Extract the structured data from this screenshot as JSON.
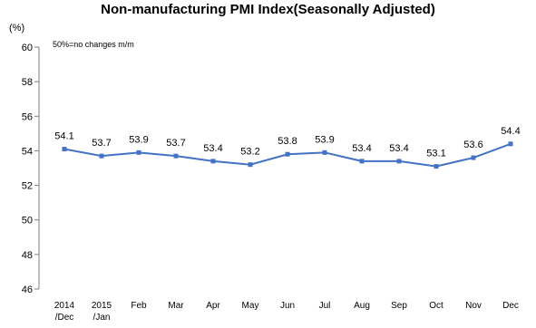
{
  "chart_data": {
    "type": "line",
    "title": "Non-manufacturing PMI Index(Seasonally Adjusted)",
    "unit_label": "(%)",
    "note": "50%=no changes m/m",
    "categories": [
      [
        "2014",
        "/Dec"
      ],
      [
        "2015",
        "/Jan"
      ],
      [
        "Feb"
      ],
      [
        "Mar"
      ],
      [
        "Apr"
      ],
      [
        "May"
      ],
      [
        "Jun"
      ],
      [
        "Jul"
      ],
      [
        "Aug"
      ],
      [
        "Sep"
      ],
      [
        "Oct"
      ],
      [
        "Nov"
      ],
      [
        "Dec"
      ]
    ],
    "series": [
      {
        "values": [
          54.1,
          53.7,
          53.9,
          53.7,
          53.4,
          53.2,
          53.8,
          53.9,
          53.4,
          53.4,
          53.1,
          53.6,
          54.4
        ],
        "labels": [
          "54.1",
          "53.7",
          "53.9",
          "53.7",
          "53.4",
          "53.2",
          "53.8",
          "53.9",
          "53.4",
          "53.4",
          "53.1",
          "53.6",
          "54.4"
        ],
        "color": "#4472c4"
      }
    ],
    "ylim": [
      46,
      60
    ],
    "y_ticks": [
      46,
      48,
      50,
      52,
      54,
      56,
      58,
      60
    ],
    "grid": false,
    "legend": "none"
  }
}
